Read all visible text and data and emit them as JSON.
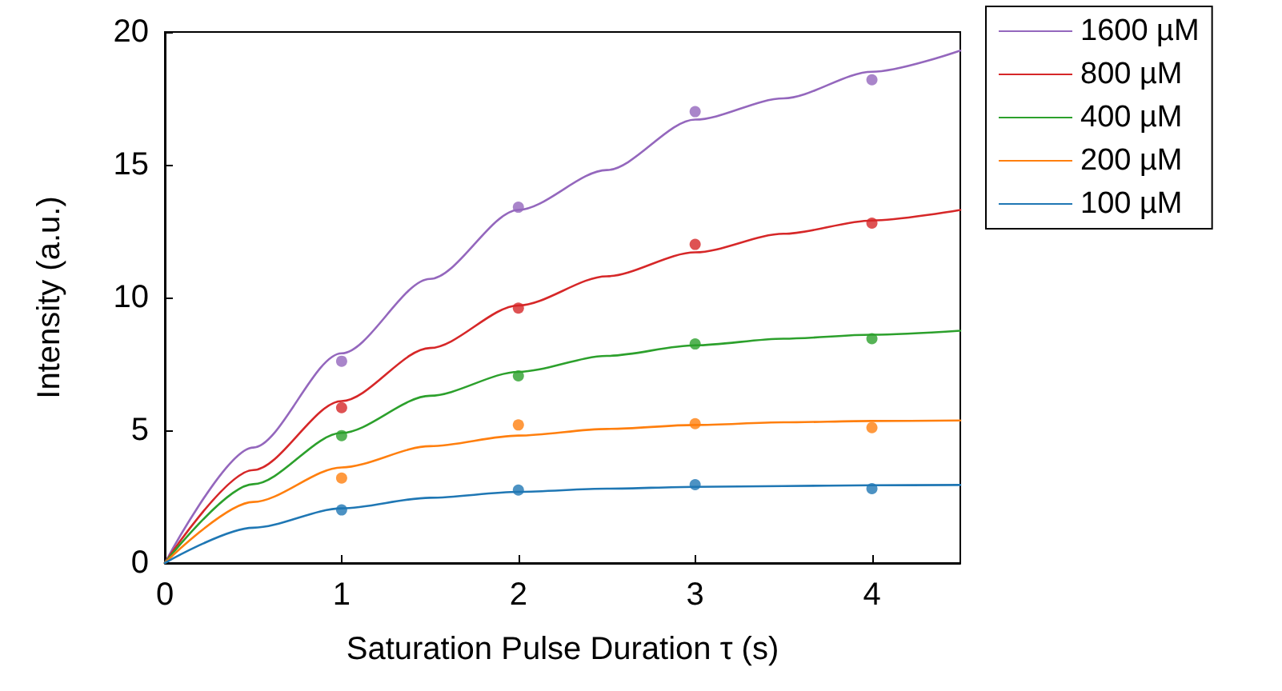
{
  "chart_data": {
    "type": "scatter",
    "xlabel": "Saturation Pulse Duration τ (s)",
    "ylabel": "Intensity (a.u.)",
    "xlim": [
      0,
      4.5
    ],
    "xticks": [
      0,
      1,
      2,
      3,
      4
    ],
    "ylim": [
      0,
      20
    ],
    "yticks": [
      0,
      5,
      10,
      15,
      20
    ],
    "grid": false,
    "legend": "top right",
    "series": [
      {
        "name": "1600 µM",
        "type": "line",
        "marker": "none",
        "color": "#9467bd",
        "x": [
          0,
          0.5,
          1,
          1.5,
          2,
          2.5,
          3,
          3.5,
          4,
          4.5
        ],
        "values": [
          0,
          4.35,
          7.9,
          10.7,
          13.3,
          14.8,
          16.7,
          17.5,
          18.5,
          19.3
        ]
      },
      {
        "name": "800 µM",
        "type": "line",
        "marker": "none",
        "color": "#d62728",
        "x": [
          0,
          0.5,
          1,
          1.5,
          2,
          2.5,
          3,
          3.5,
          4,
          4.5
        ],
        "values": [
          0,
          3.5,
          6.1,
          8.1,
          9.7,
          10.8,
          11.7,
          12.4,
          12.9,
          13.3
        ]
      },
      {
        "name": "400 µM",
        "type": "line",
        "marker": "none",
        "color": "#2ca02c",
        "x": [
          0,
          0.5,
          1,
          1.5,
          2,
          2.5,
          3,
          3.5,
          4,
          4.5
        ],
        "values": [
          0,
          2.97,
          4.9,
          6.3,
          7.2,
          7.8,
          8.2,
          8.45,
          8.6,
          8.75
        ]
      },
      {
        "name": "200 µM",
        "type": "line",
        "marker": "none",
        "color": "#ff7f0e",
        "x": [
          0,
          0.5,
          1,
          1.5,
          2,
          2.5,
          3,
          3.5,
          4,
          4.5
        ],
        "values": [
          0,
          2.3,
          3.6,
          4.4,
          4.8,
          5.05,
          5.2,
          5.3,
          5.35,
          5.37
        ]
      },
      {
        "name": "100 µM",
        "type": "line",
        "marker": "none",
        "color": "#1f77b4",
        "x": [
          0,
          0.5,
          1,
          1.5,
          2,
          2.5,
          3,
          3.5,
          4,
          4.5
        ],
        "values": [
          0,
          1.33,
          2.06,
          2.46,
          2.68,
          2.8,
          2.87,
          2.9,
          2.93,
          2.94
        ]
      },
      {
        "marker": "circle",
        "color": "#9467bd",
        "x": [
          1,
          2,
          3,
          4
        ],
        "values": [
          7.6,
          13.4,
          17.0,
          18.2
        ]
      },
      {
        "marker": "circle",
        "color": "#d62728",
        "x": [
          1,
          2,
          3,
          4
        ],
        "values": [
          5.85,
          9.6,
          12.0,
          12.8
        ]
      },
      {
        "marker": "circle",
        "color": "#2ca02c",
        "x": [
          1,
          2,
          3,
          4
        ],
        "values": [
          4.8,
          7.05,
          8.25,
          8.45
        ]
      },
      {
        "marker": "circle",
        "color": "#ff7f0e",
        "x": [
          1,
          2,
          3,
          4
        ],
        "values": [
          3.2,
          5.2,
          5.25,
          5.1
        ]
      },
      {
        "marker": "circle",
        "color": "#1f77b4",
        "x": [
          1,
          2,
          3,
          4
        ],
        "values": [
          2.0,
          2.75,
          2.95,
          2.8
        ]
      }
    ]
  }
}
